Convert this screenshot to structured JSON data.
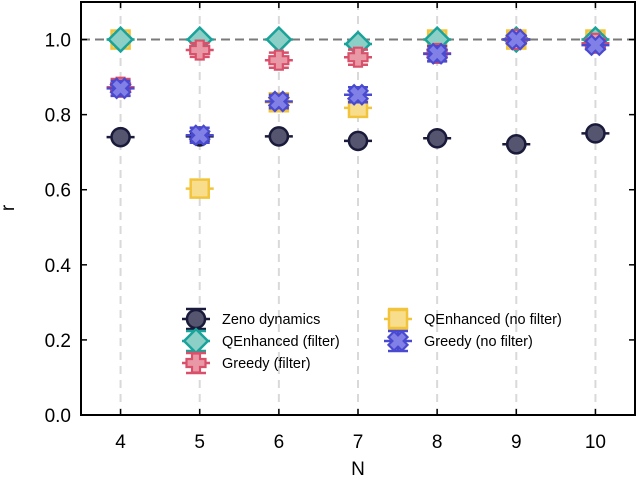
{
  "chart_data": {
    "type": "scatter",
    "xlabel": "N",
    "ylabel": "r",
    "xlim": [
      3.5,
      10.5
    ],
    "ylim": [
      0.0,
      1.1
    ],
    "xticks": [
      4,
      5,
      6,
      7,
      8,
      9,
      10
    ],
    "yticks": [
      0.0,
      0.2,
      0.4,
      0.6,
      0.8,
      1.0
    ],
    "xtick_labels": [
      "4",
      "5",
      "6",
      "7",
      "8",
      "9",
      "10"
    ],
    "ytick_labels": [
      "0.0",
      "0.2",
      "0.4",
      "0.6",
      "0.8",
      "1.0"
    ],
    "reference_line_y": 1.0,
    "grid": "vertical dashed at x ticks",
    "legend_placement": "lower-center",
    "series": [
      {
        "name": "Zeno dynamics",
        "marker": "circle",
        "color": "#1a1a3a",
        "fill": "#555570",
        "x": [
          4,
          5,
          6,
          7,
          8,
          9,
          10
        ],
        "y": [
          0.74,
          0.742,
          0.742,
          0.73,
          0.737,
          0.721,
          0.75
        ],
        "err": [
          0.004,
          0.012,
          0.004,
          0.004,
          0.004,
          0.004,
          0.004
        ]
      },
      {
        "name": "QEnhanced (filter)",
        "marker": "diamond",
        "color": "#1aa39a",
        "fill": "#8ccfc6",
        "x": [
          4,
          5,
          6,
          7,
          8,
          9,
          10
        ],
        "y": [
          1.0,
          1.0,
          1.0,
          0.988,
          1.0,
          1.0,
          1.0
        ],
        "err": [
          0.003,
          0.003,
          0.003,
          0.003,
          0.003,
          0.003,
          0.003
        ]
      },
      {
        "name": "Greedy (filter)",
        "marker": "plus",
        "color": "#d9506b",
        "fill": "#e998a6",
        "x": [
          4,
          5,
          6,
          7,
          8,
          9,
          10
        ],
        "y": [
          0.873,
          0.972,
          0.945,
          0.953,
          0.963,
          1.0,
          0.99
        ],
        "err": [
          0.022,
          0.018,
          0.02,
          0.02,
          0.02,
          0.01,
          0.012
        ]
      },
      {
        "name": "QEnhanced (no filter)",
        "marker": "square",
        "color": "#f2c43b",
        "fill": "#f8dd8c",
        "x": [
          4,
          5,
          6,
          7,
          8,
          9,
          10
        ],
        "y": [
          1.0,
          0.603,
          0.833,
          0.818,
          1.0,
          1.0,
          1.0
        ],
        "err": [
          0.004,
          0.004,
          0.004,
          0.004,
          0.004,
          0.004,
          0.004
        ]
      },
      {
        "name": "Greedy (no filter)",
        "marker": "x",
        "color": "#4a4ad0",
        "fill": "#8080e6",
        "x": [
          4,
          5,
          6,
          7,
          8,
          9,
          10
        ],
        "y": [
          0.87,
          0.745,
          0.835,
          0.853,
          0.962,
          1.0,
          0.985
        ],
        "err": [
          0.02,
          0.02,
          0.018,
          0.02,
          0.02,
          0.01,
          0.012
        ]
      }
    ],
    "legend": {
      "col1": [
        "Zeno dynamics",
        "QEnhanced (filter)",
        "Greedy (filter)"
      ],
      "col2": [
        "QEnhanced (no filter)",
        "Greedy (no filter)"
      ]
    }
  }
}
